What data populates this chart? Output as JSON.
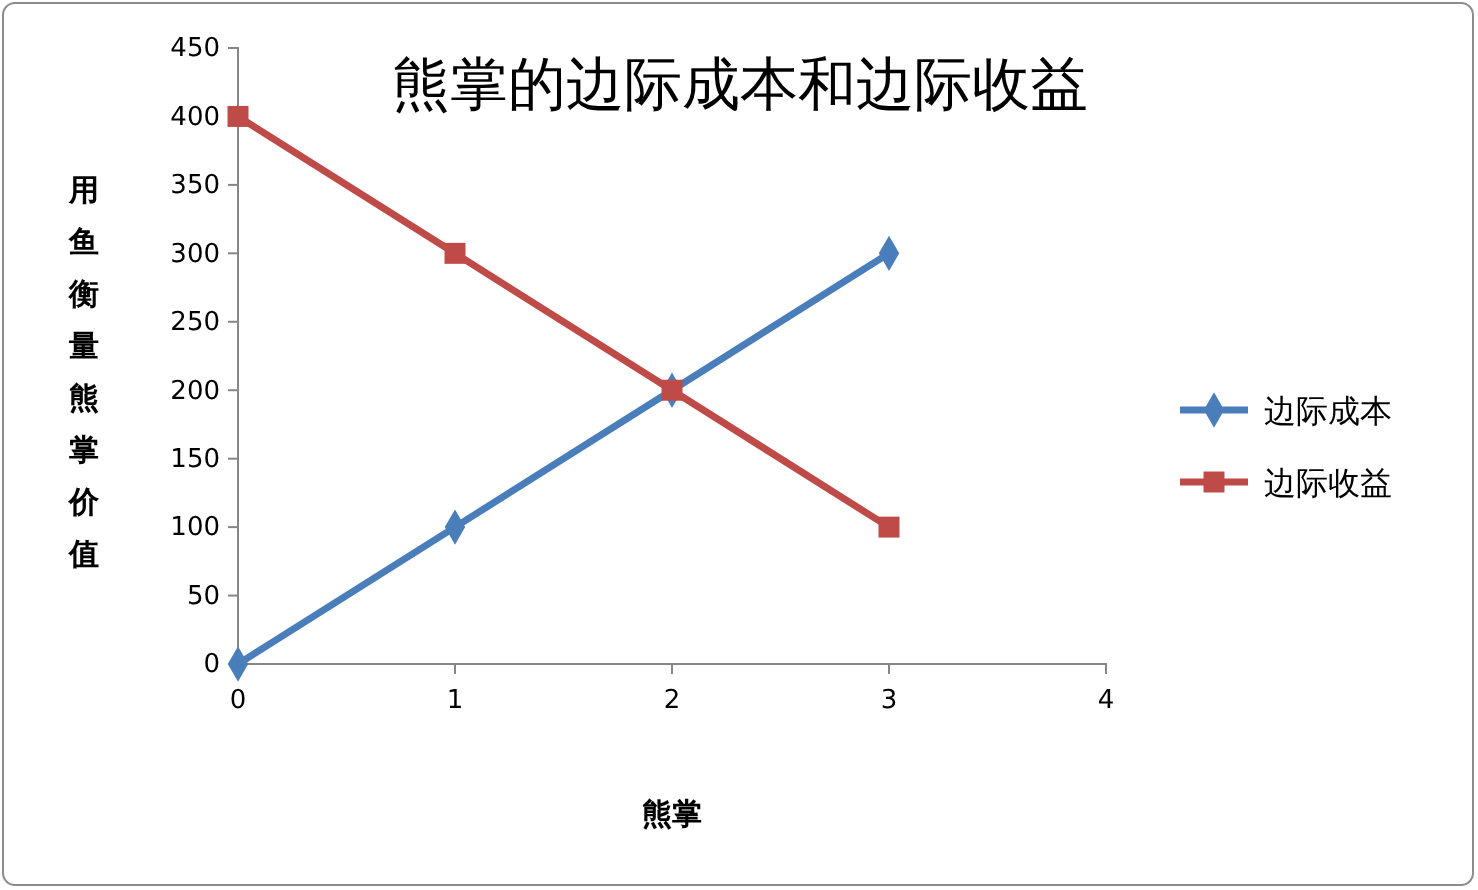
{
  "chart_data": {
    "type": "line",
    "title": "熊掌的边际成本和边际收益",
    "xlabel": "熊掌",
    "ylabel": "用鱼衡量熊掌价值",
    "x": [
      0,
      1,
      2,
      3
    ],
    "xlim": [
      0,
      4
    ],
    "xticks": [
      0,
      1,
      2,
      3,
      4
    ],
    "ylim": [
      0,
      450
    ],
    "yticks": [
      0,
      50,
      100,
      150,
      200,
      250,
      300,
      350,
      400,
      450
    ],
    "grid": false,
    "legend": "right",
    "series": [
      {
        "name": "边际成本",
        "color": "#4a7ebb",
        "marker": "diamond",
        "values": [
          0,
          100,
          200,
          300
        ]
      },
      {
        "name": "边际收益",
        "color": "#be4b48",
        "marker": "square",
        "values": [
          400,
          300,
          200,
          100
        ]
      }
    ]
  }
}
